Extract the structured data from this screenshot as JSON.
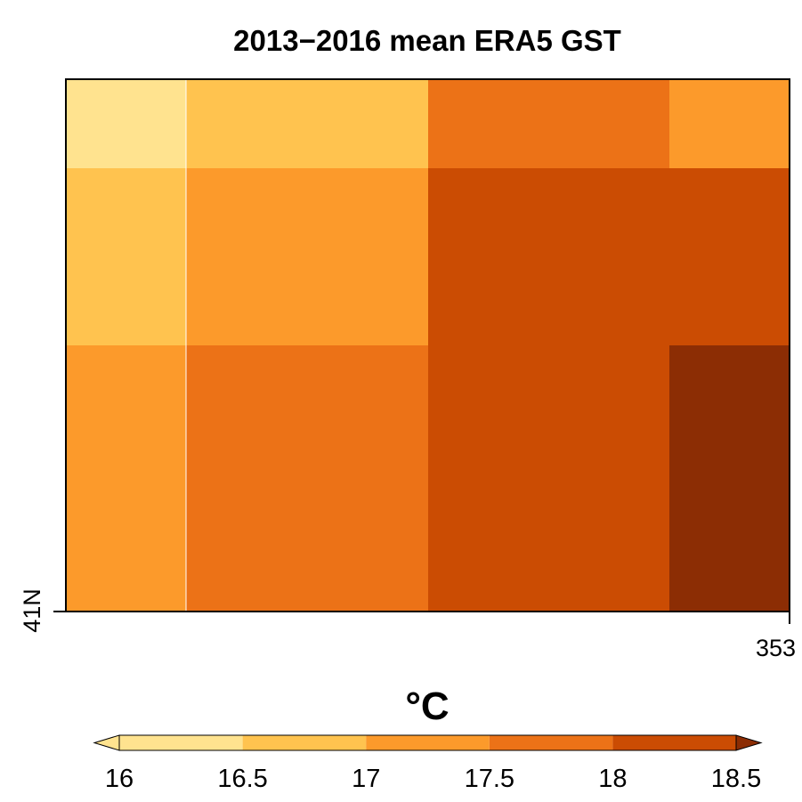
{
  "chart_data": {
    "type": "heatmap",
    "title": "2013−2016 mean ERA5 GST",
    "colorbar_label": "°C",
    "y_tick_label": "41N",
    "x_tick_label": "353",
    "columns": 4,
    "rows": 3,
    "values": [
      [
        16.2,
        16.7,
        17.7,
        17.2
      ],
      [
        16.7,
        17.2,
        18.2,
        18.2
      ],
      [
        17.2,
        17.7,
        18.2,
        18.7
      ]
    ],
    "colorbar": {
      "levels": [
        16,
        16.5,
        17,
        17.5,
        18,
        18.5
      ],
      "tick_labels": [
        "16",
        "16.5",
        "17",
        "17.5",
        "18",
        "18.5"
      ],
      "colors": [
        "#ffe38f",
        "#ffc34f",
        "#fc9a2b",
        "#ec7217",
        "#cb4c03",
        "#8c2d04"
      ],
      "extend": "both"
    }
  }
}
